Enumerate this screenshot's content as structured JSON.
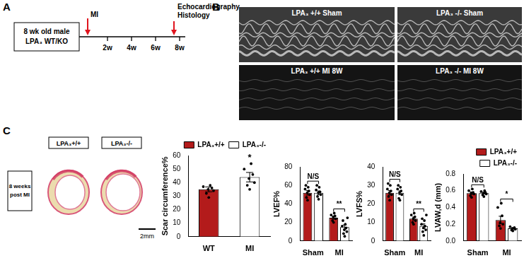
{
  "panel_labels": [
    "A",
    "B",
    "C"
  ],
  "timeline": {
    "box_lines": [
      "8 wk old male",
      "LPA₃ WT/KO"
    ],
    "start_marker": "MI",
    "ticks": [
      "2w",
      "4w",
      "6w",
      "8w"
    ],
    "end_marker_lines": [
      "Echocardiography",
      "Histology"
    ]
  },
  "echo": {
    "images": [
      {
        "genotype": "LPA₃ +/+",
        "condition": "Sham"
      },
      {
        "genotype": "LPA₃ -/-",
        "condition": "Sham"
      },
      {
        "genotype": "LPA₃ +/+",
        "condition": "MI 8W"
      },
      {
        "genotype": "LPA₃ -/-",
        "condition": "MI 8W"
      }
    ]
  },
  "histology": {
    "columns": [
      "LPA₃+/+",
      "LPA₃-/-"
    ],
    "row_lines": [
      "8 weeks",
      "post MI"
    ],
    "scale_bar": "2mm"
  },
  "chart_data": [
    {
      "type": "bar",
      "y_label": "Scar circumference%",
      "categories": [
        "WT",
        "MI"
      ],
      "series": [
        {
          "name": "LPA₃+/+",
          "color": "#b31b1b",
          "values": [
            35,
            null
          ],
          "errors": [
            1.8,
            null
          ],
          "points": [
            [
              29,
              32,
              34,
              35,
              36,
              37,
              38
            ],
            []
          ]
        },
        {
          "name": "LPA₃-/-",
          "color": "#ffffff",
          "values": [
            null,
            44
          ],
          "errors": [
            null,
            3.5
          ],
          "points": [
            [],
            [
              35,
              38,
              40,
              43,
              46,
              50,
              54
            ]
          ]
        }
      ],
      "annotations": [
        {
          "category": "MI",
          "text": "*"
        }
      ],
      "ylim": [
        0,
        60
      ],
      "yticks": [
        0,
        10,
        20,
        30,
        40,
        50,
        60
      ],
      "grid": false,
      "legend": "top-right"
    },
    {
      "type": "bar",
      "y_label": "LVEF%",
      "categories": [
        "Sham",
        "MI"
      ],
      "series": [
        {
          "name": "LPA₃+/+",
          "color": "#b31b1b",
          "values": [
            52,
            25
          ],
          "errors": [
            2.5,
            1.5
          ],
          "points": [
            [
              44,
              47,
              50,
              52,
              54,
              56,
              58,
              60
            ],
            [
              20,
              22,
              24,
              26,
              27,
              28,
              30
            ]
          ]
        },
        {
          "name": "LPA₃-/-",
          "color": "#ffffff",
          "values": [
            52,
            15
          ],
          "errors": [
            2,
            2.3
          ],
          "points": [
            [
              45,
              48,
              50,
              52,
              53,
              55,
              58,
              60
            ],
            [
              5,
              8,
              10,
              12,
              14,
              16,
              18,
              22,
              25
            ]
          ]
        }
      ],
      "annotations": [
        {
          "category": "Sham",
          "text": "N/S"
        },
        {
          "category": "MI",
          "text": "**"
        }
      ],
      "ylim": [
        0,
        80
      ],
      "yticks": [
        0,
        20,
        40,
        60,
        80
      ],
      "grid": false
    },
    {
      "type": "bar",
      "y_label": "LVFS%",
      "categories": [
        "Sham",
        "MI"
      ],
      "series": [
        {
          "name": "LPA₃+/+",
          "color": "#b31b1b",
          "values": [
            26,
            12
          ],
          "errors": [
            1.2,
            0.9
          ],
          "points": [
            [
              22,
              24,
              25,
              26,
              27,
              28,
              30,
              31
            ],
            [
              9,
              10,
              11,
              12,
              13,
              14,
              15
            ]
          ]
        },
        {
          "name": "LPA₃-/-",
          "color": "#ffffff",
          "values": [
            26,
            8
          ],
          "errors": [
            1,
            1.2
          ],
          "points": [
            [
              22,
              23,
              25,
              26,
              27,
              28,
              29,
              30
            ],
            [
              3,
              5,
              6,
              7,
              8,
              9,
              11,
              12,
              14
            ]
          ]
        }
      ],
      "annotations": [
        {
          "category": "Sham",
          "text": "N/S"
        },
        {
          "category": "MI",
          "text": "**"
        }
      ],
      "ylim": [
        0,
        40
      ],
      "yticks": [
        0,
        10,
        20,
        30,
        40
      ],
      "grid": false
    },
    {
      "type": "bar",
      "y_label": "LVAW,d (mm)",
      "categories": [
        "Sham",
        "MI"
      ],
      "series": [
        {
          "name": "LPA₃+/+",
          "color": "#b31b1b",
          "values": [
            0.57,
            0.25
          ],
          "errors": [
            0.015,
            0.045
          ],
          "points": [
            [
              0.52,
              0.54,
              0.56,
              0.57,
              0.58,
              0.6,
              0.62
            ],
            [
              0.15,
              0.18,
              0.2,
              0.22,
              0.3,
              0.4,
              0.45
            ]
          ]
        },
        {
          "name": "LPA₃-/-",
          "color": "#ffffff",
          "values": [
            0.57,
            0.15
          ],
          "errors": [
            0.01,
            0.008
          ],
          "points": [
            [
              0.53,
              0.55,
              0.56,
              0.57,
              0.58,
              0.59,
              0.6
            ],
            [
              0.12,
              0.13,
              0.14,
              0.15,
              0.16,
              0.17
            ]
          ]
        }
      ],
      "annotations": [
        {
          "category": "Sham",
          "text": "N/S"
        },
        {
          "category": "MI",
          "text": "*"
        }
      ],
      "ylim": [
        0,
        0.8
      ],
      "yticks": [
        {
          "value": 0,
          "label": "0.0"
        },
        0.2,
        0.4,
        0.6,
        0.8
      ],
      "grid": false,
      "legend": "top-right"
    }
  ]
}
